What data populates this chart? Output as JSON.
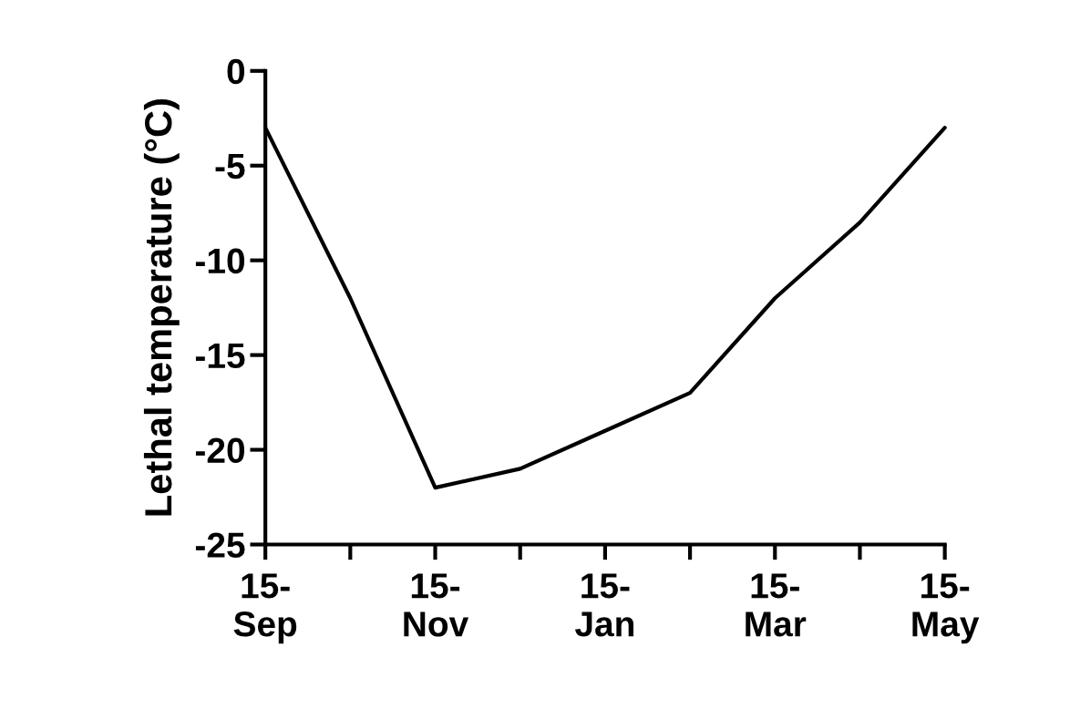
{
  "chart_data": {
    "type": "line",
    "ylabel": "Lethal temperature (°C)",
    "categories": [
      "15-\nSep",
      null,
      "15-\nNov",
      null,
      "15-\nJan",
      null,
      "15-\nMar",
      null,
      "15-\nMay"
    ],
    "series": [
      {
        "color": "#000000",
        "values": [
          -3,
          -12,
          -22,
          -21,
          -19,
          -17,
          -12,
          -8,
          -3
        ]
      }
    ],
    "ylim": [
      -25,
      0
    ],
    "yticks": [
      -25,
      -20,
      -15,
      -10,
      -5,
      0
    ],
    "grid": false,
    "legend": false,
    "marker": "none",
    "line_style": "solid"
  }
}
